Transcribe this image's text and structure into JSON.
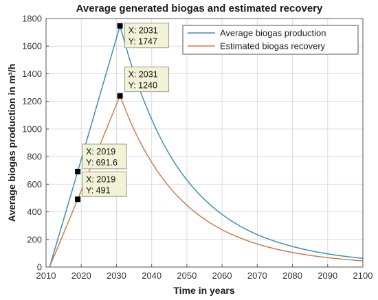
{
  "chart_data": {
    "type": "line",
    "title": "Average generated biogas and estimated recovery",
    "xlabel": "Time in years",
    "ylabel": "Average biogas production in m³/h",
    "xlim": [
      2010,
      2100
    ],
    "ylim": [
      0,
      1800
    ],
    "xticks": [
      2010,
      2020,
      2030,
      2040,
      2050,
      2060,
      2070,
      2080,
      2090,
      2100
    ],
    "yticks": [
      0,
      200,
      400,
      600,
      800,
      1000,
      1200,
      1400,
      1600,
      1800
    ],
    "grid": true,
    "legend_position": "top-right",
    "series": [
      {
        "name": "Average biogas production",
        "color": "#3a8fb7",
        "x": [
          2011,
          2019,
          2031,
          2035,
          2040,
          2045,
          2050,
          2055,
          2060,
          2065,
          2070,
          2075,
          2080,
          2085,
          2090,
          2095,
          2100
        ],
        "y": [
          0,
          691.6,
          1747,
          1390,
          1060,
          810,
          625,
          485,
          378,
          296,
          233,
          185,
          148,
          118,
          95,
          77,
          63
        ]
      },
      {
        "name": "Estimated biogas recovery",
        "color": "#d3794a",
        "x": [
          2011,
          2019,
          2031,
          2035,
          2040,
          2045,
          2050,
          2055,
          2060,
          2065,
          2070,
          2075,
          2080,
          2085,
          2090,
          2095,
          2100
        ],
        "y": [
          0,
          491,
          1240,
          985,
          752,
          575,
          444,
          344,
          268,
          210,
          166,
          131,
          105,
          84,
          68,
          55,
          45
        ]
      }
    ],
    "data_tips": [
      {
        "x_label": "X: 2019",
        "y_label": "Y: 691.6",
        "x": 2019,
        "y": 691.6
      },
      {
        "x_label": "X: 2019",
        "y_label": "Y: 491",
        "x": 2019,
        "y": 491
      },
      {
        "x_label": "X: 2031",
        "y_label": "Y: 1747",
        "x": 2031,
        "y": 1747
      },
      {
        "x_label": "X: 2031",
        "y_label": "Y: 1240",
        "x": 2031,
        "y": 1240
      }
    ]
  }
}
